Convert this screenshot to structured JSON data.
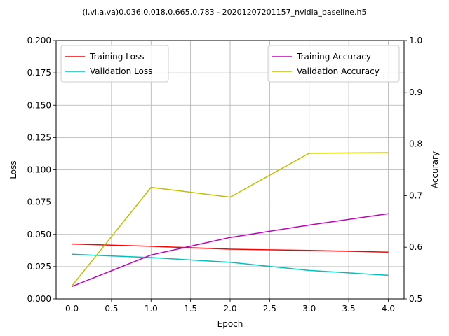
{
  "chart_data": {
    "type": "line",
    "title": "(l,vl,a,va)0.036,0.018,0.665,0.783 - 20201207201157_nvidia_baseline.h5",
    "xlabel": "Epoch",
    "ylabel": "Loss",
    "y2label": "Accurary",
    "x": [
      0,
      1,
      2,
      3,
      4
    ],
    "xlim": [
      -0.2,
      4.2
    ],
    "ylim": [
      0,
      0.2
    ],
    "y2lim": [
      0.5,
      1.0
    ],
    "xticks": [
      "0.0",
      "0.5",
      "1.0",
      "1.5",
      "2.0",
      "2.5",
      "3.0",
      "3.5",
      "4.0"
    ],
    "yticks": [
      "0.000",
      "0.025",
      "0.050",
      "0.075",
      "0.100",
      "0.125",
      "0.150",
      "0.175",
      "0.200"
    ],
    "y2ticks": [
      "0.5",
      "0.6",
      "0.7",
      "0.8",
      "0.9",
      "1.0"
    ],
    "grid": true,
    "legend_left": "top-left",
    "legend_right": "top-right",
    "series": [
      {
        "name": "Training Loss",
        "axis": "left",
        "color": "#ff0000",
        "values": [
          0.0425,
          0.0407,
          0.0385,
          0.0375,
          0.0362
        ]
      },
      {
        "name": "Validation Loss",
        "axis": "left",
        "color": "#00bfbf",
        "values": [
          0.0345,
          0.032,
          0.0283,
          0.022,
          0.0182
        ]
      },
      {
        "name": "Training Accuracy",
        "axis": "right",
        "color": "#bf00bf",
        "values": [
          0.524,
          0.585,
          0.619,
          0.643,
          0.665
        ]
      },
      {
        "name": "Validation Accuracy",
        "axis": "right",
        "color": "#bfbf00",
        "values": [
          0.525,
          0.716,
          0.697,
          0.782,
          0.783
        ]
      }
    ]
  }
}
